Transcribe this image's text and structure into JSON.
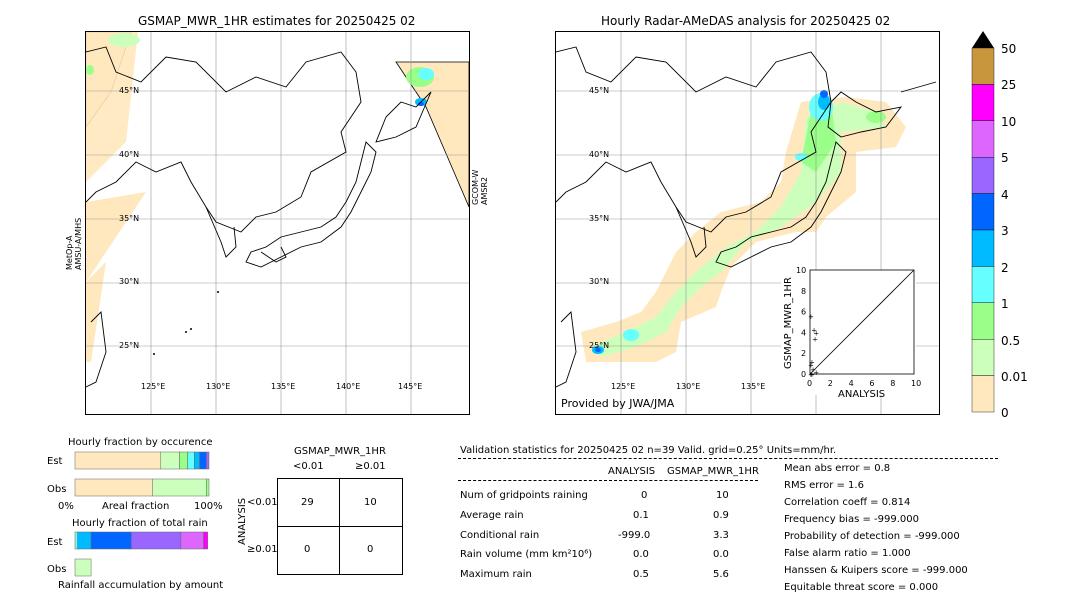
{
  "left_map": {
    "title": "GSMAP_MWR_1HR estimates for 20250425 02",
    "lat_labels": [
      "45°N",
      "40°N",
      "35°N",
      "30°N",
      "25°N"
    ],
    "lon_labels": [
      "125°E",
      "130°E",
      "135°E",
      "140°E",
      "145°E"
    ],
    "left_sat_label_1": "MetOp-A",
    "left_sat_label_2": "AMSU-A/MHS",
    "right_sat_label_1": "GCOM-W",
    "right_sat_label_2": "AMSR2"
  },
  "right_map": {
    "title": "Hourly Radar-AMeDAS analysis for 20250425 02",
    "lat_labels": [
      "45°N",
      "40°N",
      "35°N",
      "30°N",
      "25°N"
    ],
    "lon_labels": [
      "125°E",
      "130°E",
      "135°E"
    ],
    "provider": "Provided by JWA/JMA"
  },
  "colorbar": {
    "labels": [
      "50",
      "25",
      "10",
      "5",
      "4",
      "3",
      "2",
      "1",
      "0.5",
      "0.01",
      "0"
    ],
    "colors": [
      "#c8963c",
      "#ff00ff",
      "#dd66ff",
      "#9966ff",
      "#0066ff",
      "#00bbff",
      "#66ffff",
      "#99ff88",
      "#ccffbb",
      "#ffe8be"
    ],
    "over_color": "#000000"
  },
  "scatter": {
    "ylabel": "GSMAP_MWR_1HR",
    "xlabel": "ANALYSIS",
    "ticks": [
      "0",
      "2",
      "4",
      "6",
      "8",
      "10"
    ]
  },
  "fraction_occurrence": {
    "title": "Hourly fraction by occurence",
    "row_est": "Est",
    "row_obs": "Obs",
    "axis_left": "0%",
    "axis_mid": "Areal fraction",
    "axis_right": "100%"
  },
  "fraction_rain": {
    "title": "Hourly fraction of total rain",
    "row_est": "Est",
    "row_obs": "Obs",
    "footer": "Rainfall accumulation by amount"
  },
  "contingency": {
    "title": "GSMAP_MWR_1HR",
    "col_lt": "<0.01",
    "col_ge": "≥0.01",
    "side": "ANALYSIS",
    "row_lt": "<0.01",
    "row_ge": "≥0.01",
    "a": "29",
    "b": "10",
    "c": "0",
    "d": "0"
  },
  "validation": {
    "header": "Validation statistics for 20250425 02  n=39 Valid. grid=0.25° Units=mm/hr.",
    "col_analysis": "ANALYSIS",
    "col_gsmap": "GSMAP_MWR_1HR",
    "rows": [
      {
        "label": "Num of gridpoints raining",
        "analysis": "0",
        "gsmap": "10"
      },
      {
        "label": "Average rain",
        "analysis": "0.1",
        "gsmap": "0.9"
      },
      {
        "label": "Conditional rain",
        "analysis": "-999.0",
        "gsmap": "3.3"
      },
      {
        "label": "Rain volume (mm km²10⁶)",
        "analysis": "0.0",
        "gsmap": "0.0"
      },
      {
        "label": "Maximum rain",
        "analysis": "0.5",
        "gsmap": "5.6"
      }
    ],
    "stats": [
      "Mean abs error =    0.8",
      "RMS error =    1.6",
      "Correlation coeff =  0.814",
      "Frequency bias = -999.000",
      "Probability of detection = -999.000",
      "False alarm ratio =  1.000",
      "Hanssen & Kuipers score = -999.000",
      "Equitable threat score =  0.000"
    ]
  },
  "chart_data": [
    {
      "type": "scatter",
      "title": "",
      "xlabel": "ANALYSIS",
      "ylabel": "GSMAP_MWR_1HR",
      "xlim": [
        0,
        10
      ],
      "ylim": [
        0,
        10
      ],
      "points": [
        {
          "x": 0.0,
          "y": 5.6
        },
        {
          "x": 0.3,
          "y": 4.3
        },
        {
          "x": 0.5,
          "y": 4.0
        },
        {
          "x": 0.4,
          "y": 3.4
        },
        {
          "x": 0.1,
          "y": 1.2
        },
        {
          "x": 0.0,
          "y": 0.9
        },
        {
          "x": 0.2,
          "y": 0.5
        },
        {
          "x": 0.5,
          "y": 0.2
        },
        {
          "x": 0.0,
          "y": 0.0
        },
        {
          "x": 0.1,
          "y": 0.0
        }
      ]
    },
    {
      "type": "bar",
      "title": "Hourly fraction by occurence",
      "categories": [
        "Est",
        "Obs"
      ],
      "segments": {
        "Est": [
          0.64,
          0.14,
          0.06,
          0.05,
          0.04,
          0.05,
          0.02
        ],
        "Obs": [
          0.58,
          0.4,
          0.02
        ]
      }
    },
    {
      "type": "bar",
      "title": "Hourly fraction of total rain",
      "categories": [
        "Est",
        "Obs"
      ],
      "segments": {
        "Est": [
          0.02,
          0.1,
          0.3,
          0.37,
          0.17,
          0.03
        ],
        "Obs": [
          0.12
        ]
      }
    }
  ]
}
